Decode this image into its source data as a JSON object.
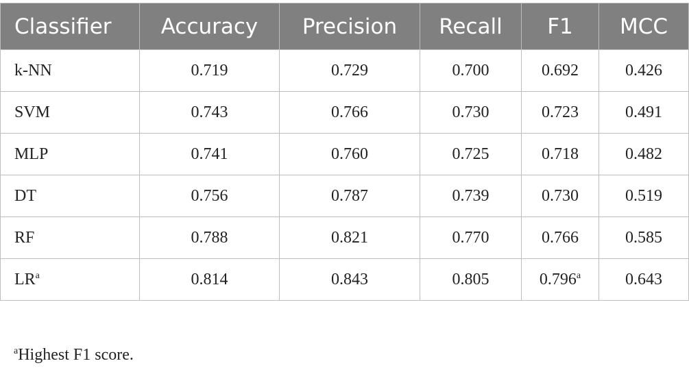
{
  "table": {
    "header": [
      "Classifier",
      "Accuracy",
      "Precision",
      "Recall",
      "F1",
      "MCC"
    ],
    "rows": [
      [
        {
          "text": "k-NN"
        },
        {
          "text": "0.719"
        },
        {
          "text": "0.729"
        },
        {
          "text": "0.700"
        },
        {
          "text": "0.692"
        },
        {
          "text": "0.426"
        }
      ],
      [
        {
          "text": "SVM"
        },
        {
          "text": "0.743"
        },
        {
          "text": "0.766"
        },
        {
          "text": "0.730"
        },
        {
          "text": "0.723"
        },
        {
          "text": "0.491"
        }
      ],
      [
        {
          "text": "MLP"
        },
        {
          "text": "0.741"
        },
        {
          "text": "0.760"
        },
        {
          "text": "0.725"
        },
        {
          "text": "0.718"
        },
        {
          "text": "0.482"
        }
      ],
      [
        {
          "text": "DT"
        },
        {
          "text": "0.756"
        },
        {
          "text": "0.787"
        },
        {
          "text": "0.739"
        },
        {
          "text": "0.730"
        },
        {
          "text": "0.519"
        }
      ],
      [
        {
          "text": "RF"
        },
        {
          "text": "0.788"
        },
        {
          "text": "0.821"
        },
        {
          "text": "0.770"
        },
        {
          "text": "0.766"
        },
        {
          "text": "0.585"
        }
      ],
      [
        {
          "text": "LR",
          "sup": "a"
        },
        {
          "text": "0.814"
        },
        {
          "text": "0.843"
        },
        {
          "text": "0.805"
        },
        {
          "text": "0.796",
          "sup": "a"
        },
        {
          "text": "0.643"
        }
      ]
    ]
  },
  "footnote": {
    "marker": "a",
    "text": "Highest F1 score."
  }
}
